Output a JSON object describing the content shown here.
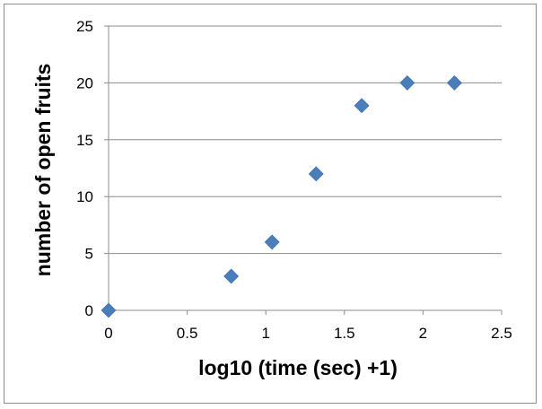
{
  "chart_data": {
    "type": "scatter",
    "title": "",
    "xlabel": "log10 (time (sec) +1)",
    "ylabel": "number of open fruits",
    "xlim": [
      0,
      2.5
    ],
    "ylim": [
      0,
      25
    ],
    "x_ticks": [
      0,
      0.5,
      1,
      1.5,
      2,
      2.5
    ],
    "y_ticks": [
      0,
      5,
      10,
      15,
      20,
      25
    ],
    "grid": {
      "horizontal": true,
      "vertical": false
    },
    "legend": "none",
    "marker": "diamond",
    "series": [
      {
        "color": "#4a7ebb",
        "points": [
          {
            "x": 0,
            "y": 0
          },
          {
            "x": 0.78,
            "y": 3
          },
          {
            "x": 1.04,
            "y": 6
          },
          {
            "x": 1.32,
            "y": 12
          },
          {
            "x": 1.61,
            "y": 18
          },
          {
            "x": 1.9,
            "y": 20
          },
          {
            "x": 2.2,
            "y": 20
          }
        ]
      }
    ]
  }
}
